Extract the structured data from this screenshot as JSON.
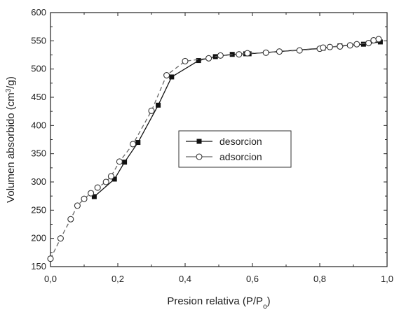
{
  "chart_data": {
    "type": "scatter",
    "xlabel": "Presion relativa (P/P",
    "xlabel_sub": "o",
    "xlabel_close": ")",
    "ylabel": "Volumen absorbido (cm",
    "ylabel_sup": "3",
    "ylabel_close": "/g)",
    "xlim": [
      0.0,
      1.0
    ],
    "ylim": [
      150,
      600
    ],
    "xticks": [
      "0,0",
      "0,2",
      "0,4",
      "0,6",
      "0,8",
      "1,0"
    ],
    "yticks": [
      "150",
      "200",
      "250",
      "300",
      "350",
      "400",
      "450",
      "500",
      "550",
      "600"
    ],
    "grid": false,
    "legend_position": "center-right",
    "series": [
      {
        "name": "desorcion",
        "marker": "filled-square",
        "line": "solid",
        "color": "#111111",
        "x": [
          0.13,
          0.19,
          0.22,
          0.26,
          0.32,
          0.36,
          0.44,
          0.49,
          0.54,
          0.58,
          0.59,
          0.81,
          0.86,
          0.93,
          0.98
        ],
        "y": [
          274,
          305,
          335,
          370,
          436,
          486,
          515,
          522,
          526,
          527,
          527,
          537,
          541,
          544,
          548
        ]
      },
      {
        "name": "adsorcion",
        "marker": "open-circle",
        "line": "dashed",
        "color": "#666666",
        "x": [
          0.0,
          0.03,
          0.06,
          0.08,
          0.1,
          0.12,
          0.14,
          0.165,
          0.18,
          0.205,
          0.245,
          0.3,
          0.345,
          0.4,
          0.47,
          0.505,
          0.56,
          0.585,
          0.64,
          0.68,
          0.74,
          0.8,
          0.81,
          0.83,
          0.86,
          0.89,
          0.91,
          0.945,
          0.96,
          0.975
        ],
        "y": [
          164,
          200,
          234,
          258,
          270,
          280,
          290,
          300,
          310,
          336,
          367,
          426,
          489,
          514,
          519,
          524,
          526,
          528,
          529,
          531,
          533,
          536,
          538,
          539,
          540,
          542,
          544,
          546,
          551,
          553
        ]
      }
    ]
  }
}
